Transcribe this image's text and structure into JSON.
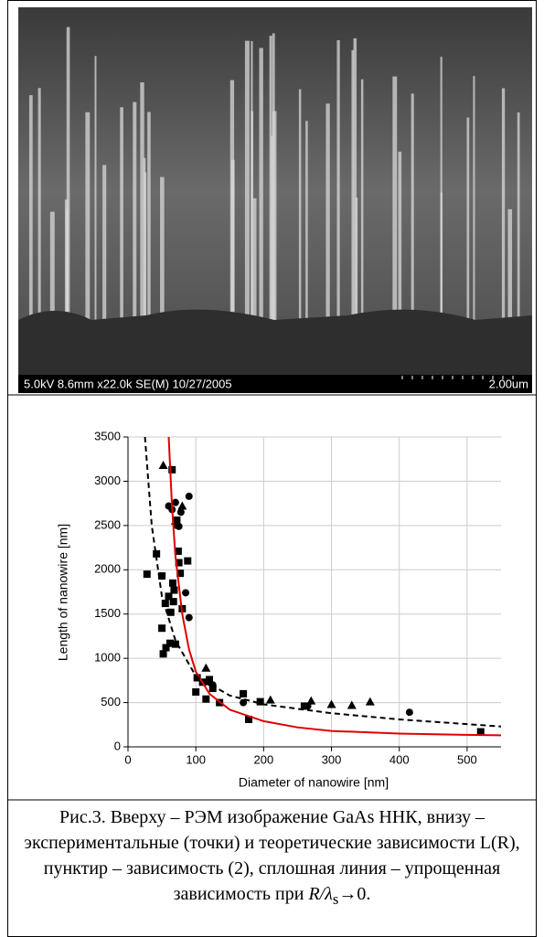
{
  "figure": {
    "sem_info": "5.0kV 8.6mm x22.0k SE(M) 10/27/2005",
    "sem_scale": "2.00um"
  },
  "chart_data": {
    "type": "scatter",
    "xlabel": "Diameter of nanowire [nm]",
    "ylabel": "Length of nanowire [nm]",
    "xlim": [
      0,
      550
    ],
    "ylim": [
      0,
      3500
    ],
    "xticks": [
      0,
      100,
      200,
      300,
      400,
      500
    ],
    "yticks": [
      0,
      500,
      1000,
      1500,
      2000,
      2500,
      3000,
      3500
    ],
    "grid": true,
    "series": [
      {
        "type": "scatter",
        "marker": "square",
        "color": "#000000",
        "x": [
          28,
          42,
          50,
          50,
          52,
          55,
          56,
          60,
          62,
          63,
          65,
          66,
          67,
          68,
          70,
          72,
          74,
          75,
          77,
          80,
          88,
          100,
          102,
          110,
          115,
          120,
          125,
          135,
          170,
          178,
          195,
          260,
          520
        ],
        "y": [
          1950,
          2180,
          1930,
          1340,
          1050,
          1620,
          1120,
          1700,
          1170,
          1520,
          3130,
          1850,
          1640,
          1770,
          1160,
          2560,
          2210,
          2080,
          1960,
          1560,
          2100,
          620,
          780,
          730,
          540,
          760,
          660,
          500,
          600,
          310,
          510,
          460,
          170
        ]
      },
      {
        "type": "scatter",
        "marker": "circle",
        "color": "#000000",
        "x": [
          60,
          65,
          70,
          72,
          75,
          78,
          85,
          90,
          90,
          112,
          120,
          125,
          170,
          265,
          415
        ],
        "y": [
          2720,
          2680,
          2760,
          2500,
          2490,
          2650,
          1740,
          2830,
          1460,
          730,
          730,
          700,
          500,
          460,
          390
        ]
      },
      {
        "type": "scatter",
        "marker": "triangle",
        "color": "#000000",
        "x": [
          52,
          70,
          80,
          115,
          210,
          270,
          300,
          330,
          357
        ],
        "y": [
          3180,
          2550,
          2720,
          890,
          530,
          520,
          480,
          470,
          510
        ]
      },
      {
        "type": "line",
        "style": "solid",
        "color": "#e00000",
        "x": [
          60,
          65,
          70,
          80,
          90,
          100,
          120,
          150,
          200,
          250,
          300,
          400,
          500,
          550
        ],
        "y": [
          3500,
          2700,
          2150,
          1500,
          1100,
          850,
          600,
          420,
          290,
          220,
          180,
          150,
          135,
          130
        ]
      },
      {
        "type": "line",
        "style": "dashed",
        "color": "#000000",
        "x": [
          25,
          35,
          50,
          70,
          100,
          150,
          200,
          300,
          400,
          550
        ],
        "y": [
          3500,
          2500,
          1700,
          1200,
          800,
          580,
          480,
          380,
          310,
          230
        ]
      }
    ]
  },
  "caption": {
    "text": "Рис.3. Вверху – РЭМ изображение GaAs ННК, внизу – экспериментальные (точки) и теоретические зависимости L(R), пунктир – зависимость (2), сплошная линия – упрощенная зависимость при ",
    "italic": "R/λ",
    "sub": "s",
    "tail": "→0."
  }
}
